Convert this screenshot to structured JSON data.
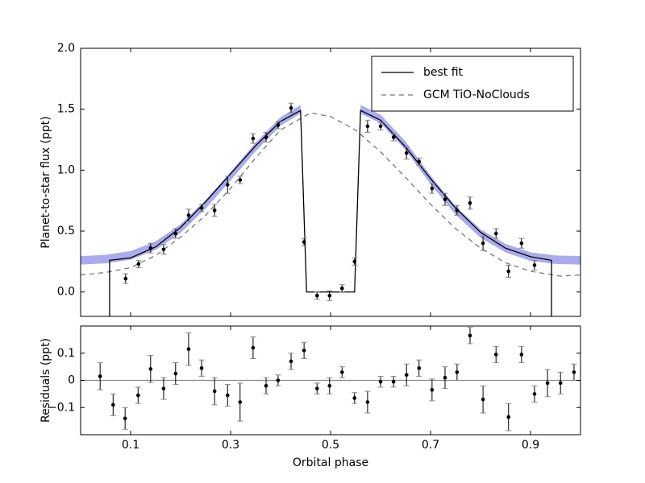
{
  "chart_data": [
    {
      "type": "line",
      "ylabel": "Planet-to-star flux (ppt)",
      "xlim": [
        0,
        1
      ],
      "ylim": [
        -0.2,
        2.0
      ],
      "xticks": [
        0.1,
        0.3,
        0.5,
        0.7,
        0.9
      ],
      "show_xtick_labels": false,
      "yticks": [
        {
          "value": 0,
          "label": "0.0"
        },
        {
          "value": 0.5,
          "label": "0.5"
        },
        {
          "value": 1,
          "label": "1.0"
        },
        {
          "value": 1.5,
          "label": "1.5"
        },
        {
          "value": 2,
          "label": "2.0"
        }
      ],
      "legend": "upper right",
      "series": [
        {
          "type": "band",
          "color": "#aaaaee",
          "x": [
            0,
            0.05,
            0.1,
            0.15,
            0.2,
            0.25,
            0.3,
            0.35,
            0.4,
            0.44
          ],
          "lower": [
            0.225,
            0.235,
            0.265,
            0.345,
            0.485,
            0.685,
            0.915,
            1.155,
            1.365,
            1.465
          ],
          "upper": [
            0.295,
            0.305,
            0.335,
            0.415,
            0.555,
            0.755,
            0.985,
            1.225,
            1.435,
            1.535
          ]
        },
        {
          "type": "band",
          "color": "#aaaaee",
          "x": [
            0.56,
            0.6,
            0.65,
            0.7,
            0.75,
            0.8,
            0.85,
            0.9,
            0.95,
            1
          ],
          "lower": [
            1.465,
            1.385,
            1.165,
            0.885,
            0.635,
            0.445,
            0.325,
            0.255,
            0.23,
            0.225
          ],
          "upper": [
            1.535,
            1.455,
            1.235,
            0.955,
            0.705,
            0.515,
            0.395,
            0.325,
            0.3,
            0.295
          ]
        },
        {
          "type": "line",
          "name": "GCM TiO-NoClouds",
          "color": "#777777",
          "dashed": true,
          "x": [
            0,
            0.05,
            0.1,
            0.15,
            0.2,
            0.25,
            0.3,
            0.35,
            0.4,
            0.46,
            0.5,
            0.55,
            0.6,
            0.65,
            0.7,
            0.75,
            0.8,
            0.85,
            0.9,
            0.96,
            1
          ],
          "values": [
            0.14,
            0.16,
            0.2,
            0.3,
            0.45,
            0.63,
            0.85,
            1.1,
            1.33,
            1.47,
            1.44,
            1.33,
            1.15,
            0.94,
            0.72,
            0.52,
            0.36,
            0.24,
            0.17,
            0.13,
            0.14
          ]
        },
        {
          "type": "line",
          "name": "best fit",
          "color": "#000000",
          "dashed": false,
          "x": [
            0.058,
            0.058,
            0.1,
            0.15,
            0.2,
            0.25,
            0.3,
            0.35,
            0.4,
            0.44,
            0.452,
            0.548,
            0.56,
            0.6,
            0.65,
            0.7,
            0.75,
            0.8,
            0.85,
            0.9,
            0.942,
            0.942
          ],
          "values": [
            -0.2,
            0.26,
            0.28,
            0.37,
            0.53,
            0.74,
            0.97,
            1.2,
            1.4,
            1.49,
            0,
            0,
            1.49,
            1.41,
            1.19,
            0.93,
            0.69,
            0.49,
            0.36,
            0.29,
            0.26,
            -0.2
          ]
        },
        {
          "type": "errorbar",
          "color": "#000000",
          "ecolor": "#888888",
          "x": [
            0.09,
            0.116,
            0.14,
            0.166,
            0.19,
            0.216,
            0.242,
            0.268,
            0.294,
            0.319,
            0.345,
            0.371,
            0.395,
            0.421,
            0.447,
            0.473,
            0.498,
            0.523,
            0.548,
            0.574,
            0.6,
            0.626,
            0.652,
            0.677,
            0.703,
            0.729,
            0.753,
            0.779,
            0.805,
            0.831,
            0.856,
            0.882,
            0.908
          ],
          "values": [
            0.11,
            0.23,
            0.36,
            0.35,
            0.48,
            0.63,
            0.69,
            0.67,
            0.88,
            0.92,
            1.26,
            1.27,
            1.37,
            1.51,
            0.41,
            -0.03,
            -0.03,
            0.03,
            0.25,
            1.36,
            1.36,
            1.27,
            1.14,
            1.07,
            0.85,
            0.76,
            0.67,
            0.73,
            0.4,
            0.48,
            0.17,
            0.4,
            0.22
          ],
          "errors": [
            0.04,
            0.03,
            0.04,
            0.04,
            0.04,
            0.05,
            0.03,
            0.05,
            0.07,
            0.03,
            0.04,
            0.04,
            0.03,
            0.04,
            0.03,
            0.03,
            0.04,
            0.03,
            0.03,
            0.05,
            0.03,
            0.03,
            0.05,
            0.03,
            0.04,
            0.05,
            0.04,
            0.05,
            0.06,
            0.04,
            0.05,
            0.04,
            0.04
          ]
        }
      ]
    },
    {
      "type": "scatter",
      "xlabel": "Orbital phase",
      "ylabel": "Residuals (ppt)",
      "xlim": [
        0,
        1
      ],
      "ylim": [
        -0.2,
        0.2
      ],
      "xticks": [
        0.1,
        0.3,
        0.5,
        0.7,
        0.9
      ],
      "show_xtick_labels": true,
      "yticks": [
        {
          "value": -0.1,
          "label": "−0.1"
        },
        0,
        0.1
      ],
      "hline": 0,
      "hline_color": "#888888",
      "series": [
        {
          "type": "errorbar",
          "color": "#000000",
          "ecolor": "#888888",
          "x": [
            0.039,
            0.065,
            0.089,
            0.115,
            0.14,
            0.166,
            0.19,
            0.216,
            0.242,
            0.268,
            0.294,
            0.319,
            0.345,
            0.371,
            0.395,
            0.421,
            0.447,
            0.473,
            0.498,
            0.523,
            0.548,
            0.574,
            0.6,
            0.626,
            0.652,
            0.677,
            0.703,
            0.729,
            0.753,
            0.779,
            0.805,
            0.831,
            0.856,
            0.882,
            0.908,
            0.934,
            0.96,
            0.987
          ],
          "values": [
            0.015,
            -0.09,
            -0.14,
            -0.055,
            0.042,
            -0.03,
            0.025,
            0.115,
            0.045,
            -0.04,
            -0.055,
            -0.08,
            0.12,
            -0.02,
            0.0,
            0.07,
            0.11,
            -0.03,
            -0.02,
            0.03,
            -0.065,
            -0.08,
            -0.005,
            -0.005,
            0.02,
            0.045,
            -0.035,
            0.01,
            0.03,
            0.165,
            -0.07,
            0.095,
            -0.135,
            0.095,
            -0.05,
            -0.01,
            -0.01,
            0.03
          ],
          "errors": [
            0.05,
            0.04,
            0.04,
            0.03,
            0.05,
            0.04,
            0.04,
            0.06,
            0.03,
            0.05,
            0.04,
            0.07,
            0.04,
            0.03,
            0.02,
            0.03,
            0.03,
            0.02,
            0.03,
            0.02,
            0.02,
            0.04,
            0.02,
            0.02,
            0.04,
            0.03,
            0.04,
            0.04,
            0.03,
            0.03,
            0.05,
            0.03,
            0.05,
            0.03,
            0.03,
            0.05,
            0.04,
            0.03
          ]
        }
      ]
    }
  ]
}
